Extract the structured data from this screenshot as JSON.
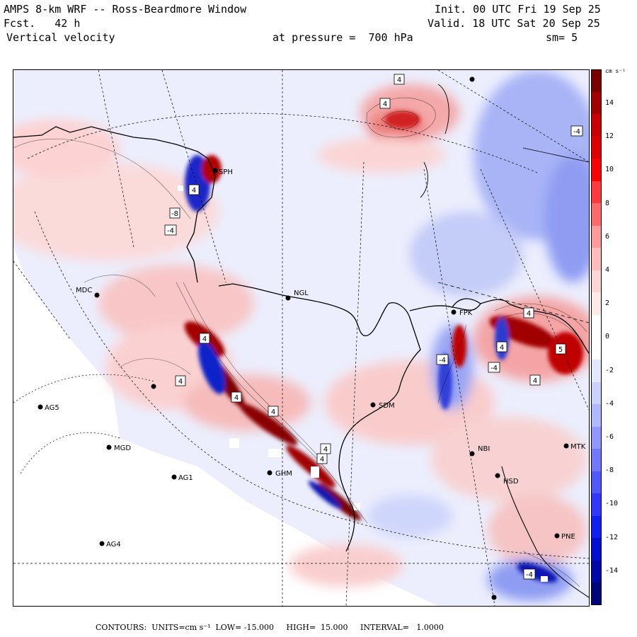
{
  "header": {
    "title": "AMPS 8-km WRF -- Ross-Beardmore Window",
    "init": "Init. 00 UTC Fri 19 Sep 25",
    "fcst": "Fcst.   42 h",
    "valid": "Valid. 18 UTC Sat 20 Sep 25",
    "field": "Vertical velocity",
    "pressure": "at pressure =  700 hPa",
    "smoothing": "sm= 5"
  },
  "colorbar": {
    "units": "cm s⁻¹",
    "tick_labels": [
      "14",
      "12",
      "10",
      "8",
      "6",
      "4",
      "2",
      "0",
      "-2",
      "-4",
      "-6",
      "-8",
      "-10",
      "-12",
      "-14"
    ],
    "colors": [
      "#7a0000",
      "#a30000",
      "#c80000",
      "#e00000",
      "#ff0000",
      "#ff3a3a",
      "#ff6b6b",
      "#ff9a9a",
      "#ffbcbc",
      "#ffd6d6",
      "#ffeaea",
      "#ffffff",
      "#ffffff",
      "#e4e8ff",
      "#ccd2ff",
      "#b0b8ff",
      "#9098ff",
      "#7078ff",
      "#5058ff",
      "#3038ff",
      "#1020f0",
      "#0010d0",
      "#0008a8",
      "#00067a"
    ]
  },
  "stations": [
    {
      "id": "MDC"
    },
    {
      "id": "NGL"
    },
    {
      "id": "FPK"
    },
    {
      "id": "AG5"
    },
    {
      "id": "MGD"
    },
    {
      "id": "AG1"
    },
    {
      "id": "AG4"
    },
    {
      "id": "SDM"
    },
    {
      "id": "NBI"
    },
    {
      "id": "MTK"
    },
    {
      "id": "HSD"
    },
    {
      "id": "GHM"
    },
    {
      "id": "SPH"
    },
    {
      "id": "PNE"
    }
  ],
  "contour_labels": [
    "4",
    "4",
    "-4",
    "4",
    "-4",
    "4",
    "4",
    "4",
    "-4",
    "-4",
    "4",
    "4",
    "4",
    "4",
    "4",
    "4",
    "5",
    "-8",
    "-4"
  ],
  "footer": {
    "contours": "CONTOURS:  UNITS=cm s⁻¹  LOW= -15.000     HIGH=  15.000     INTERVAL=   1.0000"
  }
}
